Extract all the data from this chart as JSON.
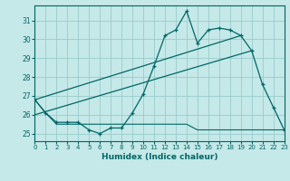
{
  "xlabel": "Humidex (Indice chaleur)",
  "bg_color": "#c5e8e8",
  "line_color": "#006666",
  "grid_color": "#99cccc",
  "xlim": [
    0,
    23
  ],
  "ylim": [
    24.6,
    31.8
  ],
  "xticks": [
    0,
    1,
    2,
    3,
    4,
    5,
    6,
    7,
    8,
    9,
    10,
    11,
    12,
    13,
    14,
    15,
    16,
    17,
    18,
    19,
    20,
    21,
    22,
    23
  ],
  "yticks": [
    25,
    26,
    27,
    28,
    29,
    30,
    31
  ],
  "main_x": [
    0,
    1,
    2,
    3,
    4,
    5,
    6,
    7,
    8,
    9,
    10,
    11,
    12,
    13,
    14,
    15,
    16,
    17,
    18,
    19,
    20,
    21,
    22,
    23
  ],
  "main_y": [
    26.8,
    26.1,
    25.6,
    25.6,
    25.6,
    25.2,
    25.0,
    25.3,
    25.3,
    26.1,
    27.1,
    28.6,
    30.2,
    30.5,
    31.5,
    29.8,
    30.5,
    30.6,
    30.5,
    30.2,
    29.4,
    27.6,
    26.4,
    25.2
  ],
  "flat_x": [
    0,
    1,
    2,
    3,
    4,
    5,
    6,
    7,
    8,
    9,
    10,
    11,
    12,
    13,
    14,
    15,
    16,
    17,
    18,
    19,
    20,
    21,
    22,
    23
  ],
  "flat_y": [
    26.8,
    26.1,
    25.5,
    25.5,
    25.5,
    25.5,
    25.5,
    25.5,
    25.5,
    25.5,
    25.5,
    25.5,
    25.5,
    25.5,
    25.5,
    25.2,
    25.2,
    25.2,
    25.2,
    25.2,
    25.2,
    25.2,
    25.2,
    25.2
  ],
  "trend1_x": [
    0,
    19
  ],
  "trend1_y": [
    26.8,
    30.2
  ],
  "trend2_x": [
    0,
    20
  ],
  "trend2_y": [
    26.0,
    29.4
  ]
}
